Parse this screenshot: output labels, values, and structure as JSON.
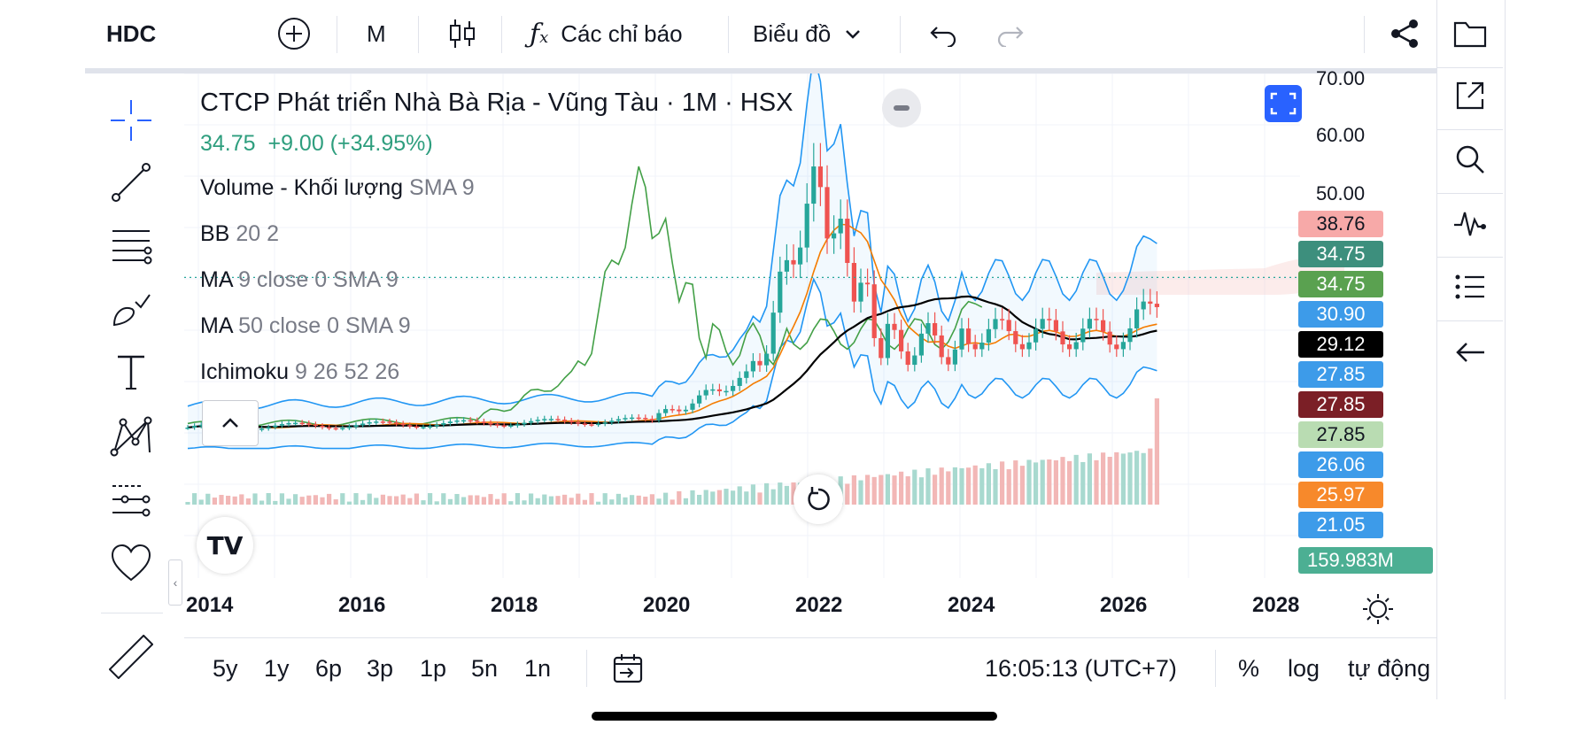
{
  "toolbar": {
    "symbol": "HDC",
    "interval": "M",
    "indicators_label": "Các chỉ báo",
    "chart_type_label": "Biểu đồ"
  },
  "legend": {
    "title": "CTCP Phát triển Nhà Bà Rịa - Vũng Tàu · 1M · HSX",
    "price": "34.75",
    "change": "+9.00 (+34.95%)",
    "indicators": [
      {
        "name": "Volume - Khối lượng",
        "params": "SMA 9"
      },
      {
        "name": "BB",
        "params": "20 2"
      },
      {
        "name": "MA",
        "params": "9 close 0 SMA 9"
      },
      {
        "name": "MA",
        "params": "50 close 0 SMA 9"
      },
      {
        "name": "Ichimoku",
        "params": "9 26 52 26"
      }
    ]
  },
  "price_labels": [
    {
      "text": "38.76",
      "color": "#f7a9a8",
      "text_color": "#131722"
    },
    {
      "text": "34.75",
      "color": "#3d8f7d",
      "text_color": "#ffffff"
    },
    {
      "text": "34.75",
      "color": "#5aa150",
      "text_color": "#ffffff"
    },
    {
      "text": "30.90",
      "color": "#3d9be9",
      "text_color": "#ffffff"
    },
    {
      "text": "29.12",
      "color": "#000000",
      "text_color": "#ffffff"
    },
    {
      "text": "27.85",
      "color": "#3d9be9",
      "text_color": "#ffffff"
    },
    {
      "text": "27.85",
      "color": "#7b1f26",
      "text_color": "#ffffff"
    },
    {
      "text": "27.85",
      "color": "#b9dcb2",
      "text_color": "#131722"
    },
    {
      "text": "26.06",
      "color": "#3d9be9",
      "text_color": "#ffffff"
    },
    {
      "text": "25.97",
      "color": "#f7892b",
      "text_color": "#ffffff"
    },
    {
      "text": "21.05",
      "color": "#3d9be9",
      "text_color": "#ffffff"
    }
  ],
  "volume_label": {
    "text": "159.983M",
    "color": "#4caf93"
  },
  "bottom": {
    "ranges": [
      "5y",
      "1y",
      "6p",
      "3p",
      "1p",
      "5n",
      "1n"
    ],
    "time": "16:05:13 (UTC+7)",
    "percent": "%",
    "log": "log",
    "auto": "tự động"
  },
  "chart_data": {
    "type": "candlestick",
    "y_ticks": [
      "70.00",
      "60.00",
      "50.00"
    ],
    "x_ticks": [
      "2014",
      "2016",
      "2018",
      "2020",
      "2022",
      "2024",
      "2026",
      "2028"
    ],
    "last_price": 34.75,
    "colors": {
      "up": "#26a69a",
      "down": "#ef5350",
      "bb": "#2196f3",
      "ma9": "#f57c00",
      "ma50": "#000000",
      "ichimoku_lagging": "#43a047",
      "kijun": "#801922"
    }
  }
}
